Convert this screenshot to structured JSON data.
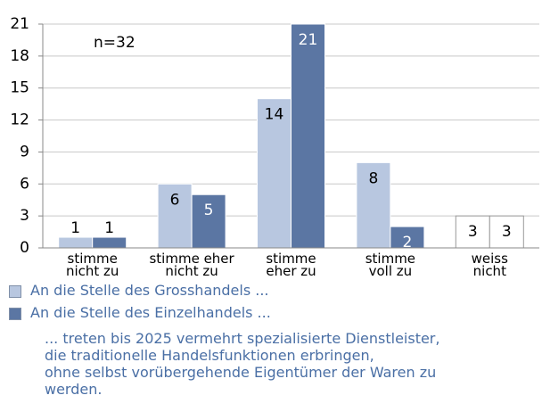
{
  "chart_data": {
    "type": "bar",
    "categories": [
      "stimme\nnicht zu",
      "stimme eher\nnicht zu",
      "stimme\neher zu",
      "stimme\nvoll zu",
      "weiss\nnicht"
    ],
    "series": [
      {
        "name": "An die Stelle des Grosshandels ...",
        "color": "#b8c7e0",
        "colors": [
          "#b8c7e0",
          "#b8c7e0",
          "#b8c7e0",
          "#b8c7e0",
          "#ffffff"
        ],
        "values": [
          1,
          6,
          14,
          8,
          3
        ]
      },
      {
        "name": "An die Stelle des Einzelhandels ...",
        "color": "#5b76a3",
        "colors": [
          "#5b76a3",
          "#5b76a3",
          "#5b76a3",
          "#5b76a3",
          "#ffffff"
        ],
        "values": [
          1,
          5,
          21,
          2,
          3
        ]
      }
    ],
    "ylim": [
      0,
      21
    ],
    "yticks": [
      0,
      3,
      6,
      9,
      12,
      15,
      18,
      21
    ],
    "grid": true,
    "annotation": "n=32",
    "note": [
      "... treten bis 2025 vermehrt spezialisierte Dienstleister,",
      "die traditionelle Handelsfunktionen erbringen,",
      "ohne selbst vorübergehende  Eigentümer der Waren zu",
      "werden."
    ]
  }
}
